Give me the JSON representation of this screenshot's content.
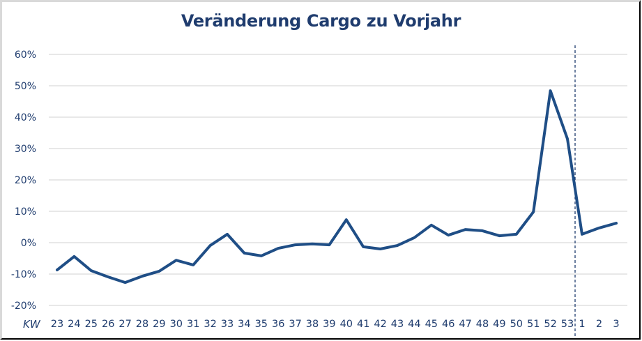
{
  "chart_data": {
    "type": "line",
    "title": "Veränderung Cargo zu Vorjahr",
    "xlabel": "KW",
    "ylabel": "",
    "ylim": [
      -20,
      60
    ],
    "yticks": [
      "60%",
      "50%",
      "40%",
      "30%",
      "20%",
      "10%",
      "0%",
      "-10%",
      "-20%"
    ],
    "ytick_values": [
      60,
      50,
      40,
      30,
      20,
      10,
      0,
      -10,
      -20
    ],
    "grid": true,
    "legend": null,
    "categories": [
      "23",
      "24",
      "25",
      "26",
      "27",
      "28",
      "29",
      "30",
      "31",
      "32",
      "33",
      "34",
      "35",
      "36",
      "37",
      "38",
      "39",
      "40",
      "41",
      "42",
      "43",
      "44",
      "45",
      "46",
      "47",
      "48",
      "49",
      "50",
      "51",
      "52",
      "53",
      "1",
      "2",
      "3"
    ],
    "series": [
      {
        "name": "Veränderung Cargo zu Vorjahr",
        "color": "#1f4e86",
        "values": [
          -8.7,
          -4.4,
          -8.9,
          -10.9,
          -12.7,
          -10.7,
          -9.1,
          -5.6,
          -7.1,
          -0.9,
          2.7,
          -3.3,
          -4.2,
          -1.8,
          -0.7,
          -0.4,
          -0.7,
          7.3,
          -1.3,
          -2.0,
          -0.9,
          1.6,
          5.6,
          2.4,
          4.2,
          3.8,
          2.2,
          2.7,
          9.8,
          48.4,
          33.1,
          2.7,
          4.7,
          6.2
        ]
      }
    ],
    "annotations": [
      {
        "type": "vertical-dashed-line",
        "position": "between 53 and 1",
        "meaning": "year boundary"
      }
    ]
  },
  "colors": {
    "line": "#1f4e86",
    "text": "#1f3c6e",
    "grid": "#d9d9d9",
    "divider": "#1f3c6e"
  }
}
